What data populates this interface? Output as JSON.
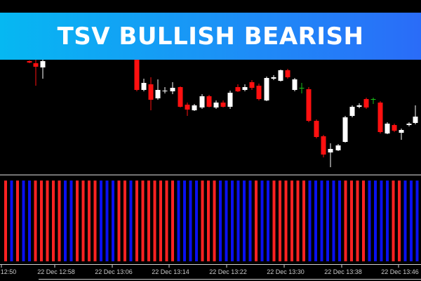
{
  "banner": {
    "title": "TSV BULLISH BEARISH"
  },
  "time_axis": {
    "labels": [
      "12:50",
      "22 Dec 12:58",
      "22 Dec 13:06",
      "22 Dec 13:14",
      "22 Dec 13:22",
      "22 Dec 13:30",
      "22 Dec 13:38",
      "22 Dec 13:46"
    ]
  }
}
